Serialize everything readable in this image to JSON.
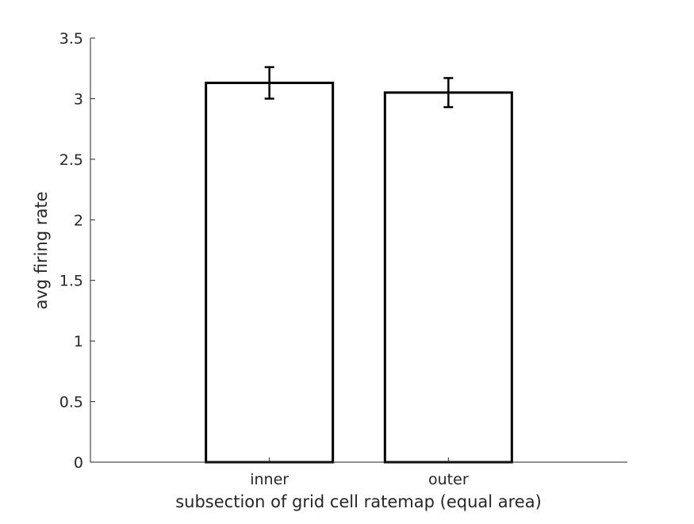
{
  "chart_data": {
    "type": "bar",
    "title": "",
    "xlabel": "subsection of grid cell ratemap (equal area)",
    "ylabel": "avg firing rate",
    "categories": [
      "inner",
      "outer"
    ],
    "values": [
      3.13,
      3.05
    ],
    "error": [
      0.13,
      0.12
    ],
    "ylim": [
      0,
      3.5
    ],
    "yticks": [
      "0",
      "0.5",
      "1",
      "1.5",
      "2",
      "2.5",
      "3",
      "3.5"
    ],
    "grid": false,
    "bar_fill": "#ffffff",
    "bar_edge": "#000000"
  }
}
